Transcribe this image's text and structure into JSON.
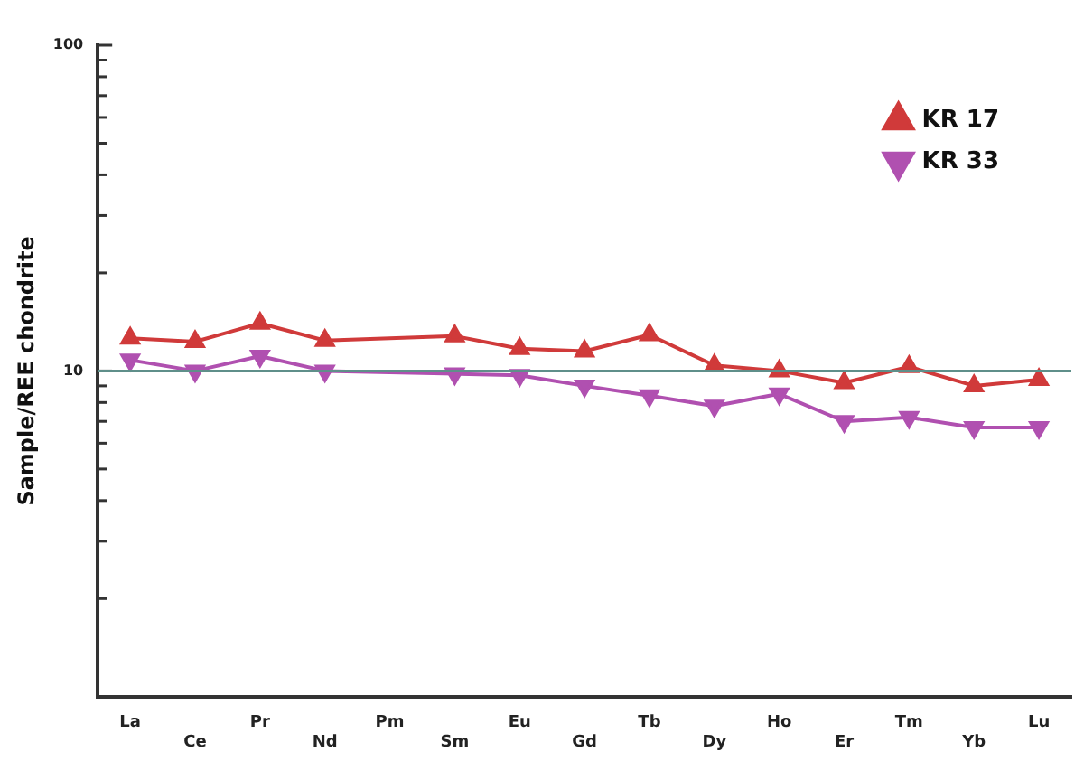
{
  "chart_data": {
    "type": "line",
    "ylabel": "Sample/REE chondrite",
    "categories": [
      "La",
      "Ce",
      "Pr",
      "Nd",
      "Pm",
      "Sm",
      "Eu",
      "Gd",
      "Tb",
      "Dy",
      "Ho",
      "Er",
      "Tm",
      "Yb",
      "Lu"
    ],
    "series": [
      {
        "name": "KR 17",
        "color": "#d03a3a",
        "values": [
          12.6,
          12.3,
          14.0,
          12.4,
          null,
          12.8,
          11.7,
          11.5,
          12.9,
          10.4,
          10.0,
          9.2,
          10.3,
          9.0,
          9.4
        ]
      },
      {
        "name": "KR 33",
        "color": "#b050b0",
        "values": [
          10.8,
          10.0,
          11.1,
          10.0,
          null,
          9.8,
          9.7,
          9.0,
          8.4,
          7.8,
          8.5,
          7.0,
          7.2,
          6.7,
          6.7
        ]
      }
    ],
    "log": "y",
    "ylim": [
      1,
      100
    ],
    "yticks": [
      {
        "value": 1,
        "label": null
      },
      {
        "value": 2,
        "label": null
      },
      {
        "value": 3,
        "label": null
      },
      {
        "value": 4,
        "label": null
      },
      {
        "value": 5,
        "label": null
      },
      {
        "value": 6,
        "label": null
      },
      {
        "value": 7,
        "label": null
      },
      {
        "value": 8,
        "label": null
      },
      {
        "value": 9,
        "label": null
      },
      10,
      {
        "value": 20,
        "label": null
      },
      {
        "value": 30,
        "label": null
      },
      {
        "value": 40,
        "label": null
      },
      {
        "value": 50,
        "label": null
      },
      {
        "value": 60,
        "label": null
      },
      {
        "value": 70,
        "label": null
      },
      {
        "value": 80,
        "label": null
      },
      {
        "value": 90,
        "label": null
      },
      100
    ],
    "ref_lines": [
      {
        "axis": "y",
        "value": 10,
        "color": "#5f8f8a"
      }
    ],
    "grid": false,
    "legend": "top right",
    "marker": "triangle",
    "line_style": "solid"
  }
}
